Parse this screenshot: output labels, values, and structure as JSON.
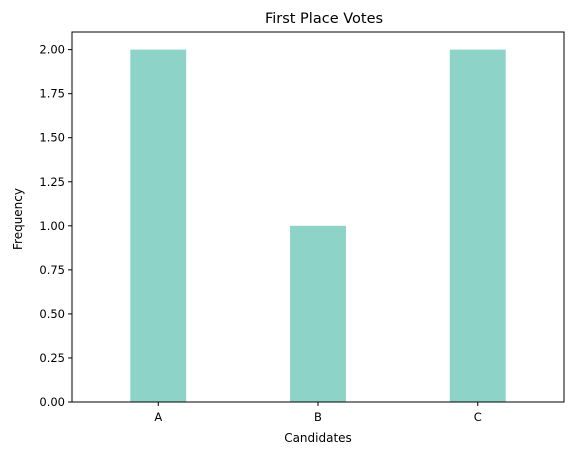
{
  "chart_data": {
    "type": "bar",
    "title": "First Place Votes",
    "xlabel": "Candidates",
    "ylabel": "Frequency",
    "categories": [
      "A",
      "B",
      "C"
    ],
    "values": [
      2,
      1,
      2
    ],
    "ylim": [
      0,
      2.1
    ],
    "yticks": [
      "0.00",
      "0.25",
      "0.50",
      "0.75",
      "1.00",
      "1.25",
      "1.50",
      "1.75",
      "2.00"
    ],
    "bar_color": "#8dd3c7",
    "grid": false,
    "legend": "none"
  }
}
